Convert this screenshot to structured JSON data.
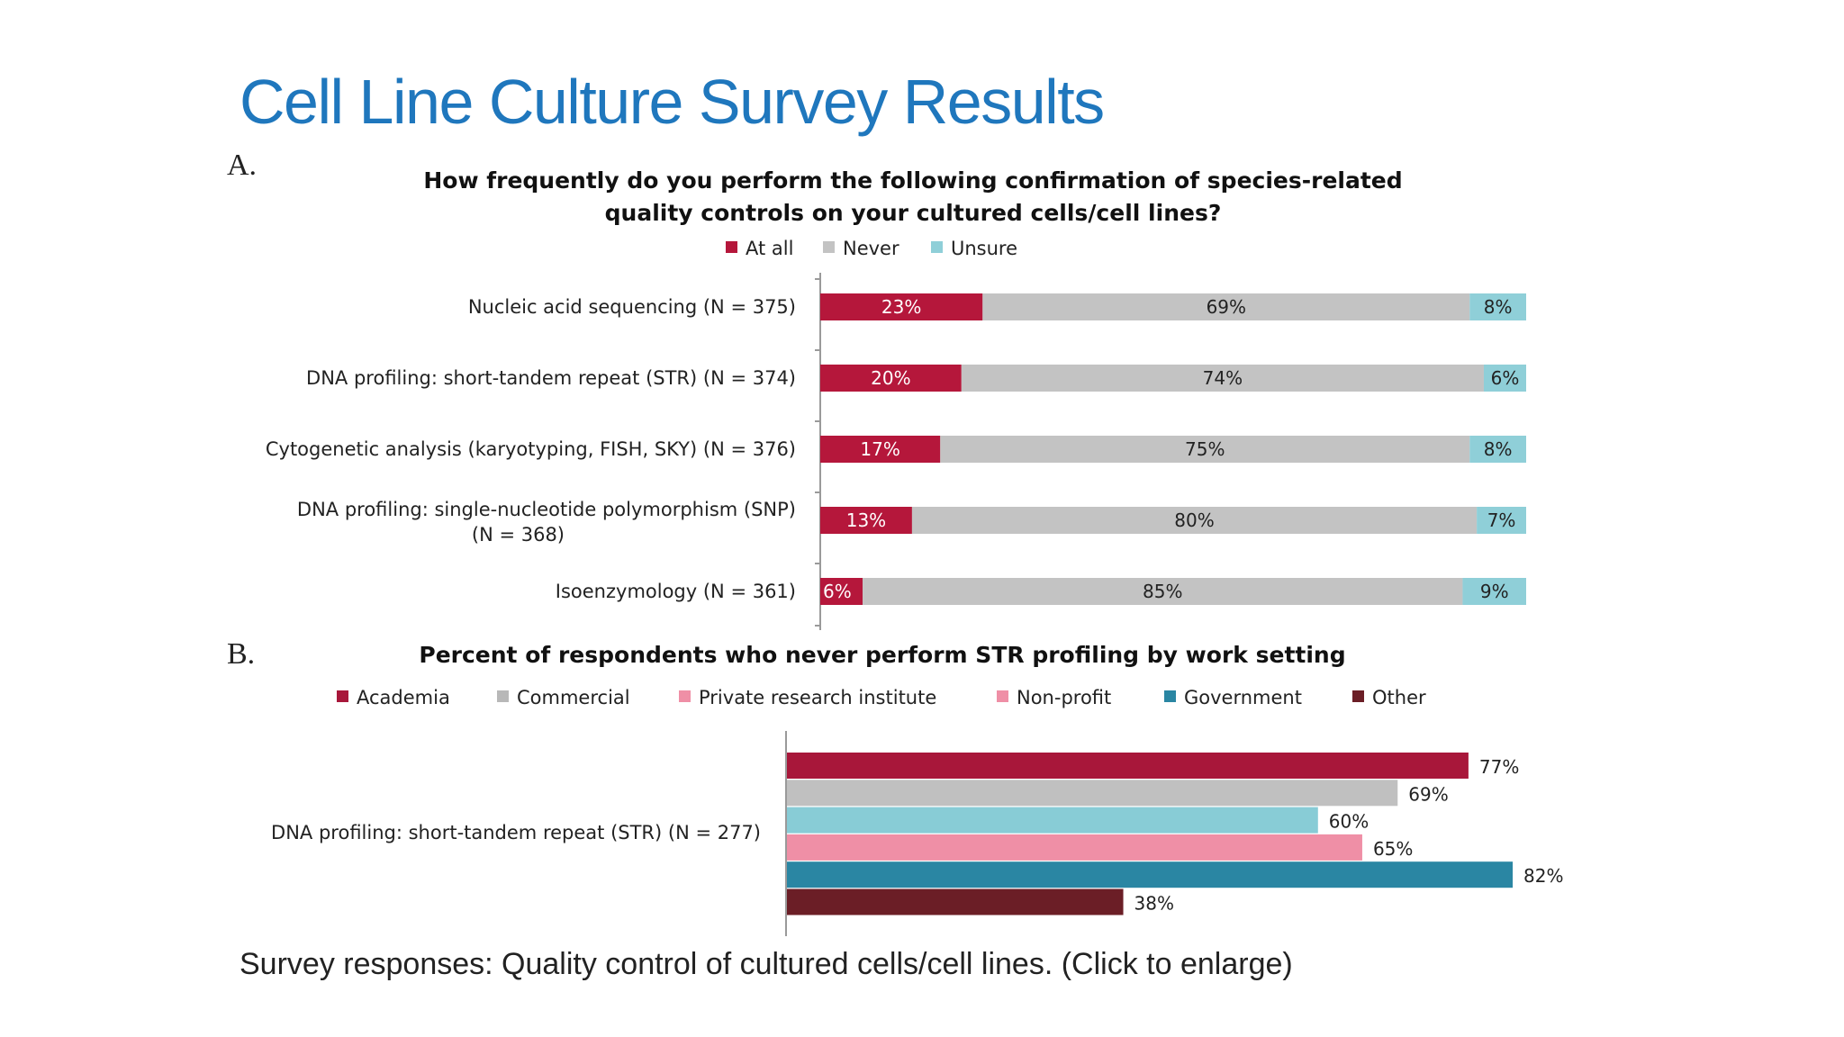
{
  "slide": {
    "title": "Cell Line Culture Survey Results",
    "caption": "Survey responses: Quality control of cultured cells/cell lines. (Click to enlarge)"
  },
  "chart_data": [
    {
      "panel": "A.",
      "type": "bar",
      "stacked": true,
      "orientation": "horizontal",
      "title_lines": [
        "How frequently do you perform the following confirmation of species-related",
        "quality controls on your cultured cells/cell lines?"
      ],
      "categories": [
        [
          "Nucleic acid sequencing (N = 375)"
        ],
        [
          "DNA profiling: short-tandem repeat (STR) (N = 374)"
        ],
        [
          "Cytogenetic analysis (karyotyping, FISH, SKY) (N = 376)"
        ],
        [
          "DNA profiling: single-nucleotide polymorphism (SNP)",
          "(N = 368)"
        ],
        [
          "Isoenzymology (N = 361)"
        ]
      ],
      "series": [
        {
          "name": "At all",
          "color": "#b5173b",
          "label_color": "#ffffff",
          "values": [
            23,
            20,
            17,
            13,
            6
          ]
        },
        {
          "name": "Never",
          "color": "#c3c3c3",
          "label_color": "#222222",
          "values": [
            69,
            74,
            75,
            80,
            85
          ]
        },
        {
          "name": "Unsure",
          "color": "#8fcfd8",
          "label_color": "#222222",
          "values": [
            8,
            6,
            8,
            7,
            9
          ]
        }
      ],
      "value_suffix": "%",
      "xlim": [
        0,
        100
      ],
      "legend_position": "top"
    },
    {
      "panel": "B.",
      "type": "bar",
      "orientation": "horizontal",
      "title_lines": [
        "Percent of respondents who never perform STR profiling by work setting"
      ],
      "category": "DNA profiling: short-tandem repeat (STR) (N = 277)",
      "legend": [
        {
          "name": "Academia",
          "color": "#a8173a"
        },
        {
          "name": "Commercial",
          "color": "#b8b8b8"
        },
        {
          "name": "Private research institute",
          "color": "#ef8fa6"
        },
        {
          "name": "Non-profit",
          "color": "#ef8fa6"
        },
        {
          "name": "Government",
          "color": "#2a86a3"
        },
        {
          "name": "Other",
          "color": "#6b1e26"
        }
      ],
      "bars": [
        {
          "name": "Academia",
          "value": 77,
          "color": "#a8173a"
        },
        {
          "name": "Commercial",
          "value": 69,
          "color": "#c0c0c0"
        },
        {
          "name": "Private research institute",
          "value": 60,
          "color": "#88ccd6"
        },
        {
          "name": "Non-profit",
          "value": 65,
          "color": "#ef8fa6"
        },
        {
          "name": "Government",
          "value": 82,
          "color": "#2a86a3"
        },
        {
          "name": "Other",
          "value": 38,
          "color": "#6b1e26"
        }
      ],
      "value_suffix": "%",
      "xlim": [
        0,
        100
      ]
    }
  ]
}
